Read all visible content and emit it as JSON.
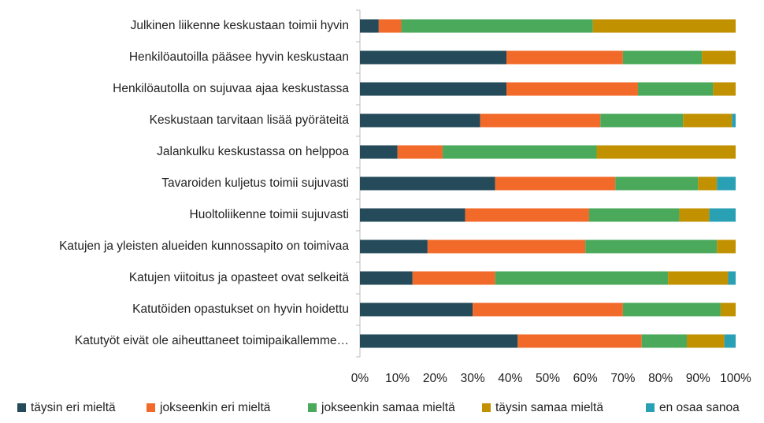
{
  "chart_data": {
    "type": "stacked-bar-horizontal",
    "categories": [
      "Julkinen liikenne keskustaan toimii hyvin",
      "Henkilöautoilla pääsee hyvin keskustaan",
      "Henkilöautolla on sujuvaa ajaa keskustassa",
      "Keskustaan tarvitaan lisää pyöräteitä",
      "Jalankulku keskustassa on helppoa",
      "Tavaroiden kuljetus toimii sujuvasti",
      "Huoltoliikenne toimii sujuvasti",
      "Katujen ja yleisten alueiden kunnossapito on toimivaa",
      "Katujen viitoitus ja opasteet ovat selkeitä",
      "Katutöiden opastukset on hyvin hoidettu",
      "Katutyöt eivät ole aiheuttaneet toimipaikallemme…"
    ],
    "series": [
      {
        "name": "täysin eri mieltä",
        "color": "#254b5a",
        "values": [
          5,
          39,
          39,
          32,
          10,
          36,
          28,
          18,
          14,
          30,
          42
        ]
      },
      {
        "name": "jokseenkin eri mieltä",
        "color": "#f26a2a",
        "values": [
          6,
          31,
          35,
          32,
          12,
          32,
          33,
          42,
          22,
          40,
          33
        ]
      },
      {
        "name": "jokseenkin samaa mieltä",
        "color": "#4aa95a",
        "values": [
          51,
          21,
          20,
          22,
          41,
          22,
          24,
          35,
          46,
          26,
          12
        ]
      },
      {
        "name": "täysin samaa mieltä",
        "color": "#c29100",
        "values": [
          38,
          9,
          6,
          13,
          37,
          5,
          8,
          5,
          16,
          4,
          10
        ]
      },
      {
        "name": "en osaa sanoa",
        "color": "#2aa0b5",
        "values": [
          0,
          0,
          0,
          1,
          0,
          5,
          7,
          0,
          2,
          0,
          3
        ]
      }
    ],
    "xlim": [
      0,
      100
    ],
    "xticks": [
      {
        "value": 0,
        "label": "0%"
      },
      {
        "value": 10,
        "label": "10%"
      },
      {
        "value": 20,
        "label": "20%"
      },
      {
        "value": 30,
        "label": "30%"
      },
      {
        "value": 40,
        "label": "40%"
      },
      {
        "value": 50,
        "label": "50%"
      },
      {
        "value": 60,
        "label": "60%"
      },
      {
        "value": 70,
        "label": "70%"
      },
      {
        "value": 80,
        "label": "80%"
      },
      {
        "value": 90,
        "label": "90%"
      },
      {
        "value": 100,
        "label": "100%"
      }
    ],
    "legend": "bottom"
  }
}
